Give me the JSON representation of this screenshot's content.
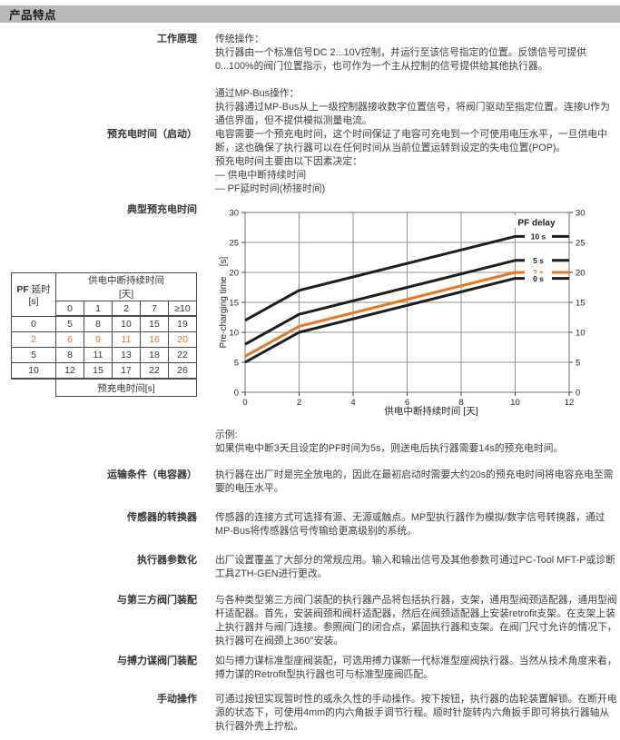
{
  "page": {
    "title": "产品特点"
  },
  "colors": {
    "header_bar": "#b9b9b9",
    "accent_orange": "#e87722",
    "line_black": "#1d1d1d",
    "body_text": "#3c3c3c",
    "table_border": "#4a4a4a",
    "grid_gray": "#8f8f8f"
  },
  "sections": [
    {
      "id": "working-principle",
      "label": "工作原理",
      "lines": [
        "传统操作：",
        "执行器由一个标准信号DC 2...10V控制，并运行至该信号指定的位置。反馈信号可提供",
        "0...100%的阀门位置指示，也可作为一个主从控制的信号提供给其他执行器。",
        "",
        "通过MP-Bus操作：",
        "执行器通过MP-Bus从上一级控制器接收数字位置信号，将阀门驱动至指定位置。连接U作为",
        "通信界面，但不提供模拟测量电流。"
      ]
    },
    {
      "id": "precharge-time",
      "label": "预充电时间（启动）",
      "lines": [
        "电容需要一个预充电时间，这个时间保证了电容可充电到一个可使用电压水平，一旦供电中",
        "断，这也确保了执行器可以在任何时间从当前位置运转到设定的失电位置(POP)。",
        "预充电时间主要由以下因素决定：",
        "— 供电中断持续时间",
        "— PF延时时间(桥接时间)"
      ]
    },
    {
      "id": "typical-precharge",
      "label": "典型预充电时间",
      "lines": [],
      "example_lines": [
        "示例:",
        "如果供电中断3天且设定的PF时间为5s，则送电后执行器需要14s的预充电时间。"
      ]
    },
    {
      "id": "transport-condition",
      "label": "运输条件（电容器）",
      "lines": [
        "执行器在出厂时是完全放电的，因此在最初启动时需要大约20s的预充电时间将电容充电至需",
        "要的电压水平。"
      ]
    },
    {
      "id": "sensor-converter",
      "label": "传感器的转换器",
      "lines": [
        "传感器的连接方式可选择有源、无源或触点。MP型执行器作为模拟/数字信号转换器，通过",
        "MP-Bus将传感器信号传输给更高级别的系统。"
      ]
    },
    {
      "id": "actuator-parametrization",
      "label": "执行器参数化",
      "lines": [
        "出厂设置覆盖了大部分的常规应用。输入和输出信号及其他参数可通过PC-Tool MFT-P或诊断",
        "工具ZTH-GEN进行更改。"
      ]
    },
    {
      "id": "third-party-valve",
      "label": "与第三方阀门装配",
      "lines": [
        "与各种类型第三方阀门装配的执行器产品将包括执行器，支架，通用型阀颈适配器，通用型阀",
        "杆适配器。首先，安装阀颈和阀杆适配器，然后在阀颈适配器上安装retrofit支架。在支架上装",
        "上执行器并与阀门连接。参照阀门的闭合点，紧固执行器和支架。在阀门尺寸允许的情况下，",
        "执行器可在阀颈上360°安装。"
      ]
    },
    {
      "id": "belimo-valve",
      "label": "与搏力谋阀门装配",
      "lines": [
        "如与搏力谋标准型座阀装配，可选用搏力谋新一代标准型座阀执行器。当然从技术角度来看，",
        "搏力谋的Retrofit型执行器也可与标准型座阀匹配。"
      ]
    },
    {
      "id": "manual-operation",
      "label": "手动操作",
      "lines": [
        "可通过按钮实现暂时性的或永久性的手动操作。按下按钮，执行器的齿轮装置解锁。在断开电",
        "源的状态下，可使用4mm的内六角扳手调节行程。顺时针旋转内六角扳手即可将执行器轴从",
        "执行器外壳上拧松。"
      ]
    }
  ],
  "precharge_table": {
    "col1_prefix": "PF",
    "col1_suffix": "延时",
    "col1_unit": "[s]",
    "span_title": "供电中断持续时间",
    "span_unit": "[天]",
    "day_headers": [
      "0",
      "1",
      "2",
      "7",
      "≥10"
    ],
    "rows": [
      {
        "pf": "0",
        "values": [
          "5",
          "8",
          "10",
          "15",
          "19"
        ],
        "highlight": false
      },
      {
        "pf": "2",
        "values": [
          "6",
          "9",
          "11",
          "16",
          "20"
        ],
        "highlight": true
      },
      {
        "pf": "5",
        "values": [
          "8",
          "11",
          "13",
          "18",
          "22"
        ],
        "highlight": false
      },
      {
        "pf": "10",
        "values": [
          "12",
          "15",
          "17",
          "22",
          "26"
        ],
        "highlight": false
      }
    ],
    "footer": "预充电时间[s]"
  },
  "chart_data": {
    "type": "line",
    "title": "",
    "xlabel": "供电中断持续时间 [天]",
    "ylabel": "Pre-charging time",
    "ylabel_unit": "[s]",
    "xlim": [
      0,
      12
    ],
    "ylim": [
      0,
      30
    ],
    "xticks": [
      0,
      2,
      4,
      6,
      8,
      10,
      12
    ],
    "yticks": [
      0,
      5,
      10,
      15,
      20,
      25,
      30
    ],
    "grid": true,
    "legend_title": "PF delay",
    "legend_position": "top-right-inside",
    "series": [
      {
        "name": "10 s",
        "color": "#1d1d1d",
        "points": [
          [
            0,
            12
          ],
          [
            2,
            17
          ],
          [
            10,
            26
          ],
          [
            12,
            26
          ]
        ]
      },
      {
        "name": "5 s",
        "color": "#1d1d1d",
        "points": [
          [
            0,
            8
          ],
          [
            2,
            13
          ],
          [
            10,
            22
          ],
          [
            12,
            22
          ]
        ]
      },
      {
        "name": "2 s",
        "color": "#e87722",
        "points": [
          [
            0,
            6
          ],
          [
            2,
            11
          ],
          [
            10,
            20
          ],
          [
            12,
            20
          ]
        ]
      },
      {
        "name": "0 s",
        "color": "#1d1d1d",
        "points": [
          [
            0,
            5
          ],
          [
            2,
            10
          ],
          [
            10,
            19
          ],
          [
            12,
            19
          ]
        ]
      }
    ]
  }
}
